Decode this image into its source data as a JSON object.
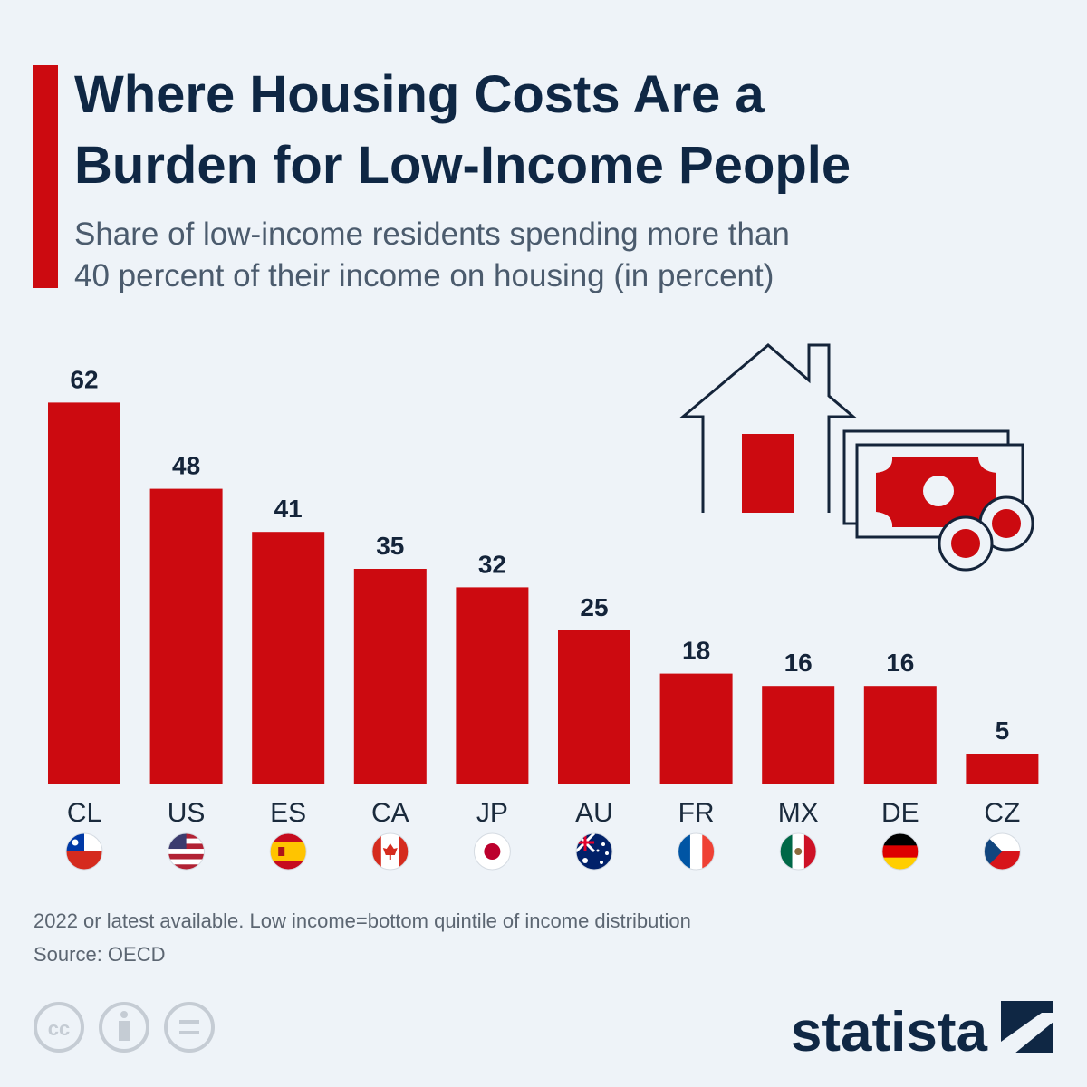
{
  "chart_data": {
    "type": "bar",
    "title": [
      "Where Housing Costs Are a",
      "Burden for Low-Income People"
    ],
    "subtitle": [
      "Share of low-income residents spending more than",
      "40 percent of their income on housing (in percent)"
    ],
    "categories": [
      "CL",
      "US",
      "ES",
      "CA",
      "JP",
      "AU",
      "FR",
      "MX",
      "DE",
      "CZ"
    ],
    "values": [
      62,
      48,
      41,
      35,
      32,
      25,
      18,
      16,
      16,
      5
    ],
    "color": "#cc0a10",
    "note": "2022 or latest available. Low income=bottom quintile of income distribution",
    "source": "Source: OECD"
  },
  "brand": "statista"
}
